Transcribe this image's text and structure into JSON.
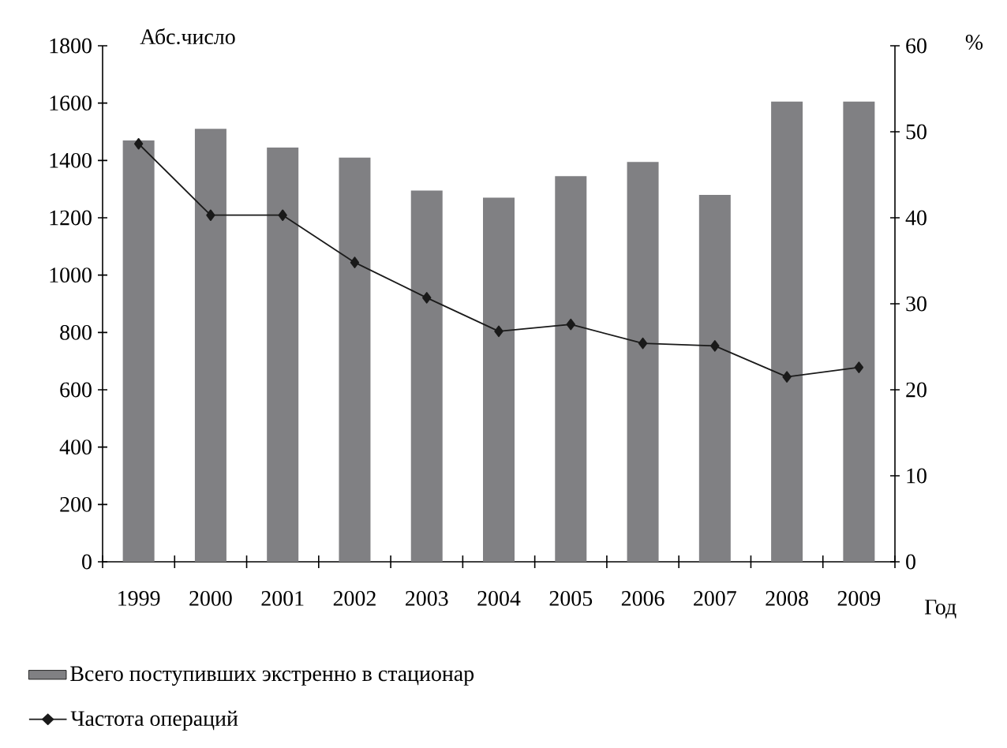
{
  "chart_data": {
    "type": "bar",
    "xlabel": "Год",
    "ylabel": "Абс.число",
    "y2label": "%",
    "categories": [
      "1999",
      "2000",
      "2001",
      "2002",
      "2003",
      "2004",
      "2005",
      "2006",
      "2007",
      "2008",
      "2009"
    ],
    "series": [
      {
        "name": "Всего поступивших экстренно в  стационар",
        "color": "#808083",
        "values": [
          1470,
          1510,
          1445,
          1410,
          1295,
          1270,
          1345,
          1395,
          1280,
          1605,
          1605
        ]
      },
      {
        "name": "Частота операций",
        "type": "line",
        "axis": "y2",
        "color": "#1a1a1a",
        "values": [
          48.6,
          40.3,
          40.3,
          34.8,
          30.7,
          26.8,
          27.6,
          25.4,
          25.1,
          21.5,
          22.6
        ]
      }
    ],
    "ylim": [
      0,
      1800
    ],
    "yticks": [
      0,
      200,
      400,
      600,
      800,
      1000,
      1200,
      1400,
      1600,
      1800
    ],
    "y2lim": [
      0,
      60
    ],
    "y2ticks": [
      0,
      10,
      20,
      30,
      40,
      50,
      60
    ],
    "marker": "diamond",
    "legend": "bottom"
  }
}
